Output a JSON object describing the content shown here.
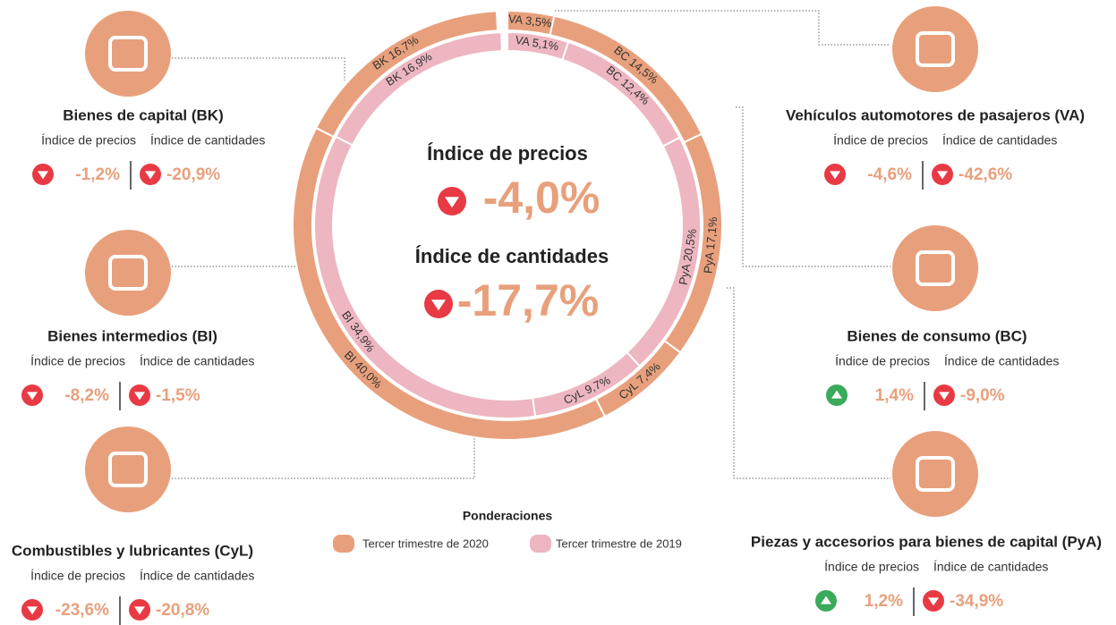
{
  "chart_data": {
    "type": "donut",
    "categories": [
      "VA",
      "BC",
      "PyA",
      "CyL",
      "BI",
      "BK"
    ],
    "series": [
      {
        "name": "Tercer trimestre de 2020",
        "color": "#e8a07c",
        "values": [
          3.5,
          14.5,
          17.1,
          7.4,
          40.0,
          16.7
        ],
        "value_labels": [
          "VA 3,5%",
          "BC 14,5%",
          "PyA 17,1%",
          "CyL 7,4%",
          "BI 40,0%",
          "BK 16,7%"
        ]
      },
      {
        "name": "Tercer trimestre de 2019",
        "color": "#edb6c0",
        "values": [
          5.1,
          12.4,
          20.5,
          9.7,
          34.9,
          16.9
        ],
        "value_labels": [
          "VA 5,1%",
          "BC 12,4%",
          "PyA 20,5%",
          "CyL 9,7%",
          "BI 34,9%",
          "BK 16,9%"
        ]
      }
    ],
    "legend_title": "Ponderaciones"
  },
  "center": {
    "price_label": "Índice de precios",
    "price_value": "-4,0%",
    "quantity_label": "Índice de cantidades",
    "quantity_value": "-17,7%"
  },
  "panels": [
    {
      "title": "Bienes de capital (BK)",
      "labels": [
        "Índice de precios",
        "Índice de cantidades"
      ],
      "values": [
        "-1,2%",
        "-20,9%"
      ]
    },
    {
      "title": "Bienes intermedios (BI)",
      "labels": [
        "Índice de precios",
        "Índice de cantidades"
      ],
      "values": [
        "-8,2%",
        "-1,5%"
      ]
    },
    {
      "title": "Combustibles y lubricantes (CyL)",
      "labels": [
        "Índice de precios",
        "Índice de cantidades"
      ],
      "values": [
        "-23,6%",
        "-20,8%"
      ]
    },
    {
      "title": "Vehículos automotores de pasajeros (VA)",
      "labels": [
        "Índice de precios",
        "Índice de cantidades"
      ],
      "values": [
        "-4,6%",
        "-42,6%"
      ]
    },
    {
      "title": "Bienes de consumo (BC)",
      "labels": [
        "Índice de precios",
        "Índice de cantidades"
      ],
      "values": [
        "1,4%",
        "-9,0%"
      ]
    },
    {
      "title": "Piezas y accesorios para bienes de capital (PyA)",
      "labels": [
        "Índice de precios",
        "Índice de cantidades"
      ],
      "values": [
        "1,2%",
        "-34,9%"
      ]
    }
  ]
}
